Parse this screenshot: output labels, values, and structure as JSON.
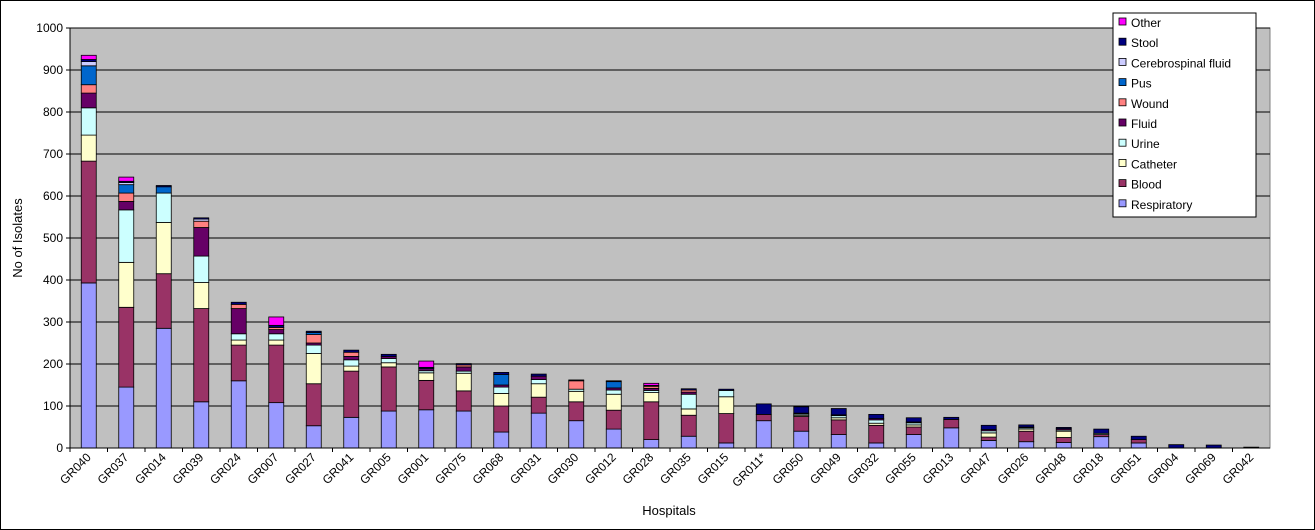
{
  "chart_data": {
    "type": "bar",
    "stacked": true,
    "title": "",
    "xlabel": "Hospitals",
    "ylabel": "No of Isolates",
    "ylim": [
      0,
      1000
    ],
    "yticks": [
      0,
      100,
      200,
      300,
      400,
      500,
      600,
      700,
      800,
      900,
      1000
    ],
    "grid": true,
    "legend_position": "top-right",
    "plot_background": "#c0c0c0",
    "categories": [
      "GR040",
      "GR037",
      "GR014",
      "GR039",
      "GR024",
      "GR007",
      "GR027",
      "GR041",
      "GR005",
      "GR001",
      "GR075",
      "GR068",
      "GR031",
      "GR030",
      "GR012",
      "GR028",
      "GR035",
      "GR015",
      "GR011*",
      "GR050",
      "GR049",
      "GR032",
      "GR055",
      "GR013",
      "GR047",
      "GR026",
      "GR048",
      "GR018",
      "GR051",
      "GR004",
      "GR069",
      "GR042"
    ],
    "series": [
      {
        "name": "Respiratory",
        "color": "#9999ff",
        "values": [
          393,
          145,
          285,
          110,
          160,
          108,
          53,
          73,
          88,
          91,
          88,
          38,
          83,
          65,
          45,
          20,
          28,
          12,
          65,
          40,
          32,
          12,
          32,
          48,
          18,
          15,
          13,
          27,
          12,
          0,
          0,
          0
        ]
      },
      {
        "name": "Blood",
        "color": "#993366",
        "values": [
          290,
          190,
          130,
          222,
          85,
          137,
          100,
          110,
          105,
          70,
          48,
          62,
          38,
          45,
          45,
          90,
          50,
          70,
          15,
          35,
          35,
          42,
          18,
          20,
          8,
          25,
          12,
          5,
          8,
          0,
          0,
          0
        ]
      },
      {
        "name": "Catheter",
        "color": "#ffffcc",
        "values": [
          62,
          107,
          122,
          62,
          12,
          12,
          72,
          12,
          10,
          18,
          42,
          30,
          32,
          25,
          38,
          22,
          15,
          40,
          0,
          3,
          5,
          5,
          5,
          0,
          10,
          5,
          15,
          0,
          0,
          0,
          0,
          0
        ]
      },
      {
        "name": "Urine",
        "color": "#ccffff",
        "values": [
          65,
          125,
          70,
          63,
          15,
          15,
          20,
          15,
          10,
          5,
          5,
          15,
          10,
          5,
          10,
          5,
          35,
          15,
          0,
          3,
          5,
          8,
          5,
          0,
          5,
          3,
          3,
          3,
          0,
          0,
          0,
          0
        ]
      },
      {
        "name": "Fluid",
        "color": "#660066",
        "values": [
          35,
          20,
          0,
          68,
          60,
          10,
          5,
          8,
          5,
          5,
          10,
          5,
          8,
          0,
          5,
          5,
          5,
          0,
          0,
          2,
          2,
          3,
          2,
          0,
          3,
          2,
          3,
          0,
          0,
          0,
          0,
          0
        ]
      },
      {
        "name": "Wound",
        "color": "#ff8080",
        "values": [
          20,
          20,
          0,
          15,
          10,
          5,
          20,
          10,
          0,
          0,
          5,
          0,
          0,
          20,
          0,
          5,
          5,
          0,
          0,
          0,
          0,
          0,
          0,
          0,
          0,
          0,
          0,
          0,
          0,
          0,
          0,
          0
        ]
      },
      {
        "name": "Pus",
        "color": "#0066cc",
        "values": [
          45,
          20,
          15,
          0,
          0,
          0,
          5,
          0,
          0,
          0,
          0,
          25,
          0,
          0,
          15,
          0,
          0,
          0,
          0,
          0,
          0,
          0,
          0,
          0,
          0,
          0,
          0,
          0,
          0,
          0,
          0,
          0
        ]
      },
      {
        "name": "Cerebrospinal fluid",
        "color": "#ccccff",
        "values": [
          10,
          5,
          0,
          5,
          0,
          0,
          0,
          0,
          0,
          0,
          0,
          0,
          0,
          0,
          0,
          0,
          0,
          0,
          0,
          0,
          0,
          0,
          0,
          0,
          0,
          0,
          0,
          0,
          0,
          0,
          0,
          0
        ]
      },
      {
        "name": "Stool",
        "color": "#000080",
        "values": [
          5,
          3,
          3,
          3,
          5,
          5,
          3,
          5,
          5,
          3,
          3,
          5,
          5,
          2,
          2,
          2,
          3,
          3,
          25,
          15,
          15,
          10,
          10,
          5,
          10,
          5,
          3,
          10,
          8,
          8,
          7,
          2
        ]
      },
      {
        "name": "Other",
        "color": "#ff00ff",
        "values": [
          10,
          10,
          0,
          0,
          0,
          20,
          0,
          0,
          0,
          15,
          0,
          0,
          0,
          0,
          0,
          5,
          0,
          0,
          0,
          0,
          0,
          0,
          0,
          0,
          0,
          0,
          0,
          0,
          0,
          0,
          0,
          0
        ]
      }
    ]
  }
}
